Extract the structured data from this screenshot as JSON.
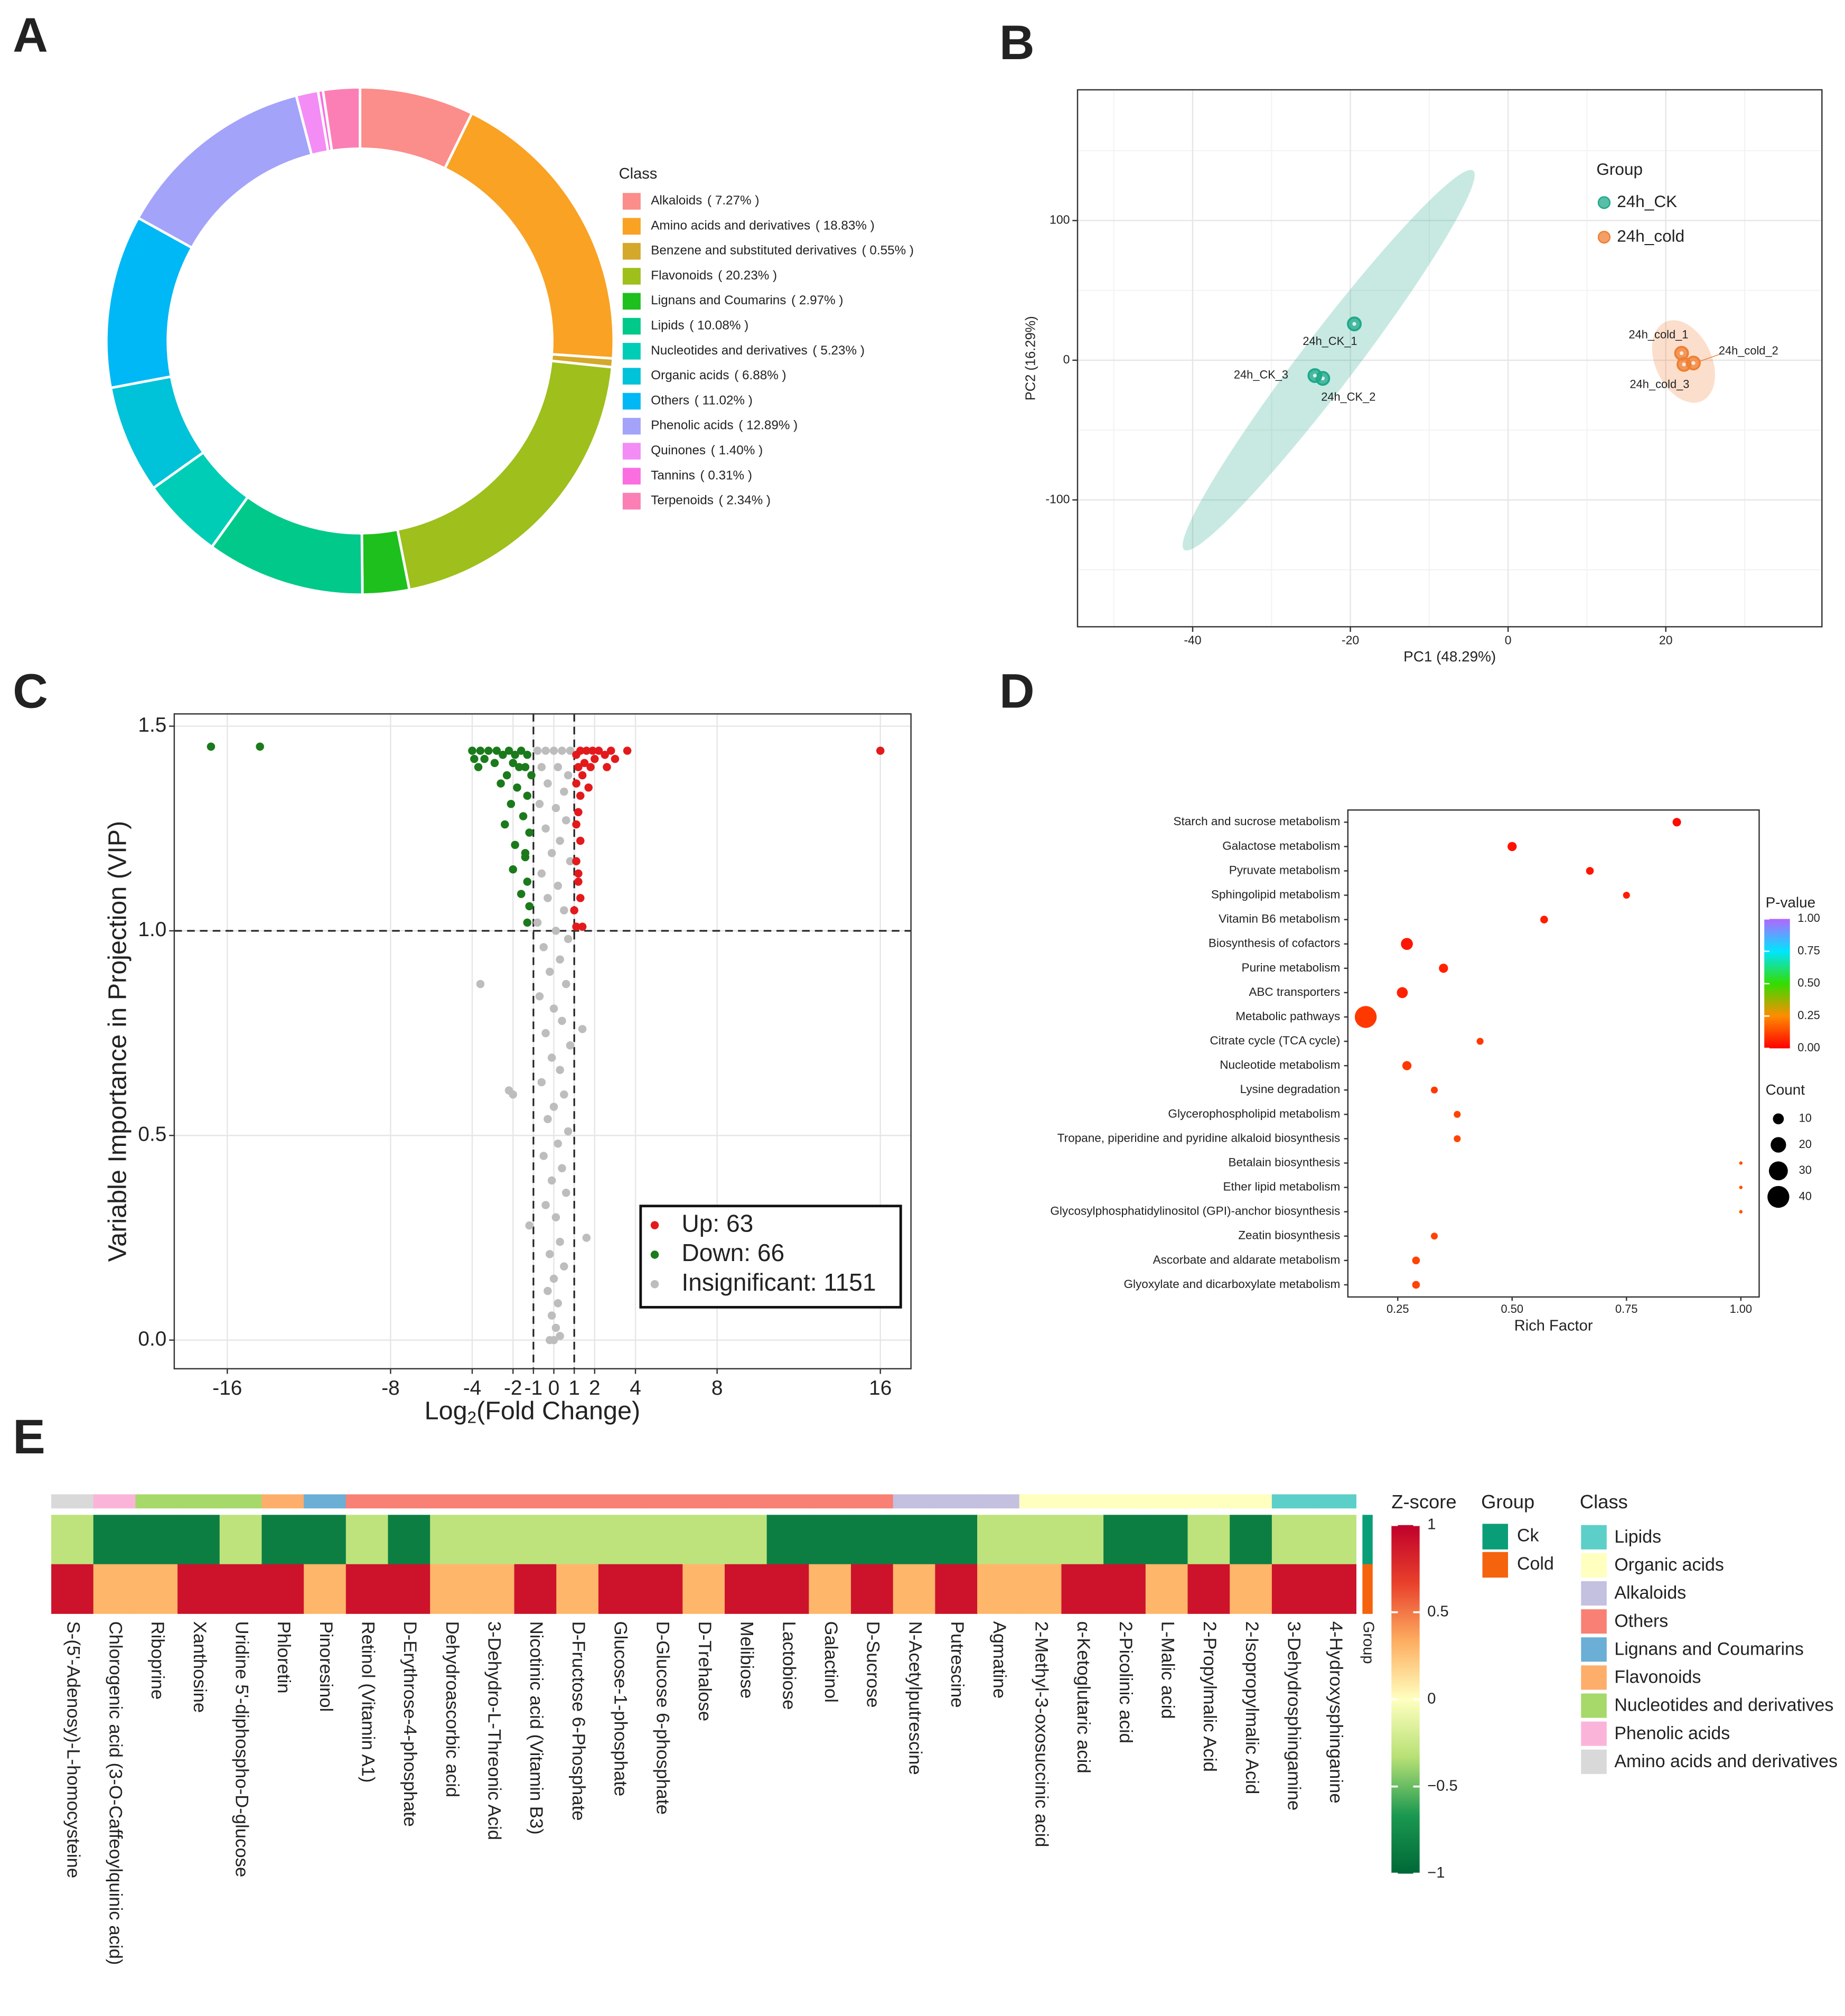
{
  "chart_data": [
    {
      "type": "pie",
      "panel": "A",
      "legend_title": "Class",
      "categories": [
        "Alkaloids",
        "Amino acids and derivatives",
        "Benzene and substituted derivatives",
        "Flavonoids",
        "Lignans and Coumarins",
        "Lipids",
        "Nucleotides and derivatives",
        "Organic acids",
        "Others",
        "Phenolic acids",
        "Quinones",
        "Tannins",
        "Terpenoids"
      ],
      "values": [
        7.27,
        18.83,
        0.55,
        20.23,
        2.97,
        10.08,
        5.23,
        6.88,
        11.02,
        12.89,
        1.4,
        0.31,
        2.34
      ],
      "value_labels": [
        "( 7.27% )",
        "( 18.83% )",
        "( 0.55% )",
        "( 20.23% )",
        "( 2.97% )",
        "( 10.08% )",
        "( 5.23% )",
        "( 6.88% )",
        "( 11.02% )",
        "( 12.89% )",
        "( 1.40% )",
        "( 0.31% )",
        "( 2.34% )"
      ],
      "colors": [
        "#fb8d8a",
        "#f9a224",
        "#d4a82a",
        "#9ebf1c",
        "#1ec01e",
        "#00c98a",
        "#00cdb6",
        "#00c2d8",
        "#00b8f5",
        "#a3a3fa",
        "#f38cf5",
        "#fb6ee0",
        "#fb7fb4"
      ]
    },
    {
      "type": "scatter",
      "panel": "B",
      "xlabel": "PC1 (48.29%)",
      "ylabel": "PC2 (16.29%)",
      "xlim": [
        -54.6,
        39.8
      ],
      "ylim": [
        -190.8,
        193.6
      ],
      "xticks": [
        -40,
        -20,
        0,
        20
      ],
      "yticks": [
        -100,
        0,
        100
      ],
      "grid": true,
      "legend_title": "Group",
      "series": [
        {
          "name": "24h_CK",
          "color": "#1fa88a",
          "x": [
            -19.5,
            -23.5,
            -24.5
          ],
          "values": [
            26,
            -13,
            -11
          ],
          "point_labels": [
            "24h_CK_1",
            "24h_CK_2",
            "24h_CK_3"
          ]
        },
        {
          "name": "24h_cold",
          "color": "#ef7f32",
          "x": [
            22,
            23.5,
            22.3
          ],
          "values": [
            5,
            -2,
            -3
          ],
          "point_labels": [
            "24h_cold_1",
            "24h_cold_2",
            "24h_cold_3"
          ]
        }
      ]
    },
    {
      "type": "scatter",
      "panel": "C",
      "xlabel": [
        "Log",
        "2",
        "(Fold Change)"
      ],
      "ylabel": "Variable Importance in Projection (VIP)",
      "xlim": [
        -18.6,
        17.5
      ],
      "ylim": [
        -0.07,
        1.53
      ],
      "xticks": [
        -16,
        -8,
        -4,
        -2,
        -1,
        0,
        1,
        2,
        4,
        8,
        16
      ],
      "yticks": [
        {
          "value": 0,
          "label": "0.0"
        },
        0.5,
        {
          "value": 1,
          "label": "1.0"
        },
        1.5
      ],
      "grid": true,
      "thresholds": {
        "x": [
          -1,
          1
        ],
        "y": [
          1
        ]
      },
      "series": [
        {
          "name": "Up: 63",
          "color": "#e31a1c",
          "x": [
            16,
            3.6,
            2.8,
            2.5,
            2.2,
            1.9,
            1.6,
            1.3,
            1.1,
            2.0,
            1.5,
            1.2,
            1.8,
            3.0,
            2.6,
            1.4,
            1.1,
            1.7,
            1.3,
            1.2,
            1.1,
            1.3,
            1.1,
            1.2,
            1.3,
            1.0,
            1.1,
            1.4,
            1.2
          ],
          "values": [
            1.44,
            1.44,
            1.44,
            1.43,
            1.44,
            1.44,
            1.44,
            1.44,
            1.43,
            1.42,
            1.41,
            1.4,
            1.4,
            1.42,
            1.4,
            1.38,
            1.36,
            1.35,
            1.33,
            1.29,
            1.26,
            1.22,
            1.17,
            1.12,
            1.08,
            1.05,
            1.01,
            1.01,
            1.14
          ]
        },
        {
          "name": "Down: 66",
          "color": "#1b7a1b",
          "x": [
            -16.8,
            -14.4,
            -4.0,
            -3.6,
            -3.2,
            -2.8,
            -2.5,
            -2.2,
            -1.9,
            -1.6,
            -1.3,
            -3.9,
            -3.4,
            -2.9,
            -2.0,
            -1.7,
            -1.4,
            -3.7,
            -2.3,
            -1.1,
            -2.6,
            -1.8,
            -1.3,
            -2.1,
            -1.5,
            -2.4,
            -1.2,
            -1.9,
            -1.4,
            -2.0,
            -1.3,
            -1.6,
            -1.2,
            -1.3,
            -1.4
          ],
          "values": [
            1.45,
            1.45,
            1.44,
            1.44,
            1.44,
            1.44,
            1.43,
            1.44,
            1.43,
            1.44,
            1.43,
            1.42,
            1.42,
            1.41,
            1.41,
            1.4,
            1.4,
            1.4,
            1.38,
            1.38,
            1.36,
            1.35,
            1.33,
            1.31,
            1.28,
            1.26,
            1.24,
            1.21,
            1.18,
            1.15,
            1.12,
            1.09,
            1.06,
            1.02,
            1.19
          ]
        },
        {
          "name": "Insignificant: 1151",
          "color": "#bdbdbd",
          "x": [
            -0.8,
            -0.4,
            0,
            0.4,
            0.8,
            -0.6,
            0.2,
            0.7,
            -0.3,
            0.5,
            -0.7,
            0.1,
            0.6,
            -0.4,
            0.3,
            -0.1,
            0.8,
            -0.6,
            0.2,
            -0.3,
            0.5,
            -0.8,
            0.1,
            0.7,
            -0.5,
            0.3,
            -0.2,
            1.4,
            -3.6,
            0.6,
            -0.7,
            0,
            0.4,
            -0.4,
            0.8,
            -0.1,
            0.3,
            -0.6,
            -2.2,
            -2.0,
            0.5,
            0,
            -0.3,
            0.7,
            0.2,
            -0.5,
            0.4,
            -0.1,
            0.6,
            -0.4,
            0.1,
            -1.2,
            1.6,
            0.3,
            -0.2,
            0.5,
            0,
            -0.3,
            0.2,
            -0.1,
            0.1,
            0,
            -0.2,
            0.3
          ],
          "values": [
            1.44,
            1.44,
            1.44,
            1.44,
            1.44,
            1.4,
            1.4,
            1.38,
            1.36,
            1.34,
            1.31,
            1.3,
            1.27,
            1.25,
            1.22,
            1.19,
            1.17,
            1.14,
            1.11,
            1.08,
            1.05,
            1.02,
            1.0,
            0.98,
            0.96,
            0.93,
            0.9,
            0.76,
            0.87,
            0.87,
            0.84,
            0.81,
            0.78,
            0.75,
            0.72,
            0.69,
            0.66,
            0.63,
            0.61,
            0.6,
            0.6,
            0.57,
            0.54,
            0.51,
            0.48,
            0.45,
            0.42,
            0.39,
            0.36,
            0.33,
            0.3,
            0.28,
            0.25,
            0.24,
            0.21,
            0.18,
            0.15,
            0.12,
            0.09,
            0.06,
            0.03,
            0,
            0,
            0.01
          ]
        }
      ]
    },
    {
      "type": "bubble",
      "panel": "D",
      "xlabel": "Rich Factor",
      "xlim": [
        0.141,
        1.04
      ],
      "xticks": [
        {
          "value": 0.25,
          "label": "0.25"
        },
        {
          "value": 0.5,
          "label": "0.50"
        },
        {
          "value": 0.75,
          "label": "0.75"
        },
        {
          "value": 1,
          "label": "1.00"
        }
      ],
      "categories": [
        "Starch and sucrose metabolism",
        "Galactose metabolism",
        "Pyruvate metabolism",
        "Sphingolipid metabolism",
        "Vitamin B6 metabolism",
        "Biosynthesis of cofactors",
        "Purine metabolism",
        "ABC transporters",
        "Metabolic pathways",
        "Citrate cycle (TCA cycle)",
        "Nucleotide metabolism",
        "Lysine degradation",
        "Glycerophospholipid metabolism",
        "Tropane, piperidine and pyridine alkaloid biosynthesis",
        "Betalain biosynthesis",
        "Ether lipid metabolism",
        "Glycosylphosphatidylinositol (GPI)-anchor biosynthesis",
        "Zeatin biosynthesis",
        "Ascorbate and aldarate metabolism",
        "Glyoxylate and dicarboxylate metabolism"
      ],
      "values": [
        0.86,
        0.5,
        0.67,
        0.75,
        0.57,
        0.27,
        0.35,
        0.26,
        0.18,
        0.43,
        0.27,
        0.33,
        0.38,
        0.38,
        1.0,
        1.0,
        1.0,
        0.33,
        0.29,
        0.29
      ],
      "sizes": [
        6,
        7,
        5,
        4,
        5,
        12,
        7,
        10,
        40,
        4,
        7,
        4,
        4,
        4,
        1,
        1,
        1,
        4,
        5,
        5
      ],
      "pvalues": [
        0.02,
        0.03,
        0.04,
        0.05,
        0.05,
        0.04,
        0.06,
        0.06,
        0.1,
        0.1,
        0.1,
        0.1,
        0.12,
        0.12,
        0.15,
        0.15,
        0.15,
        0.12,
        0.12,
        0.12
      ],
      "color_title": "P-value",
      "clim": [
        0,
        1
      ],
      "colorscale": [
        "#ff0000",
        "#ff8c00",
        "#33dd00",
        "#00e5ff",
        "#b266ff"
      ],
      "cticks": [
        {
          "value": 0,
          "label": "0.00"
        },
        0.25,
        {
          "value": 0.5,
          "label": "0.50"
        },
        0.75,
        {
          "value": 1,
          "label": "1.00"
        }
      ],
      "size_title": "Count",
      "size_ticks": [
        10,
        20,
        30,
        40
      ]
    },
    {
      "type": "heatmap",
      "panel": "E",
      "columns": [
        "S-(5'-Adenosy)-L-homocysteine",
        "Chlorogenic acid (3-O-Caffeoylquinic acid)",
        "Riboprine",
        "Xanthosine",
        "Uridine 5'-diphospho-D-glucose",
        "Phloretin",
        "Pinoresinol",
        "Retinol (Vitamin A1)",
        "D-Erythrose-4-phosphate",
        "Dehydroascorbic acid",
        "3-Dehydro-L-Threonic Acid",
        "Nicotinic acid (Vitamin B3)",
        "D-Fructose 6-Phosphate",
        "Glucose-1-phosphate",
        "D-Glucose 6-phosphate",
        "D-Trehalose",
        "Melibiose",
        "Lactobiose",
        "Galactinol",
        "D-Sucrose",
        "N-Acetylputrescine",
        "Putrescine",
        "Agmatine",
        "2-Methyl-3-oxosuccinic acid",
        "α-Ketoglutaric acid",
        "2-Picolinic acid",
        "L-Malic acid",
        "2-Propylmalic Acid",
        "2-Isopropylmalic Acid",
        "3-Dehydrosphingamine",
        "4-Hydroxysphinganine"
      ],
      "values": [
        [
          -0.3,
          -0.85,
          -0.85,
          -0.85,
          -0.3,
          -0.85,
          -0.85,
          -0.3,
          -0.85,
          -0.3,
          -0.3,
          -0.3,
          -0.3,
          -0.3,
          -0.3,
          -0.3,
          -0.3,
          -0.85,
          -0.85,
          -0.85,
          -0.85,
          -0.85,
          -0.3,
          -0.3,
          -0.3,
          -0.85,
          -0.85,
          -0.3,
          -0.85,
          -0.3,
          -0.3
        ],
        [
          0.9,
          0.3,
          0.3,
          0.9,
          0.9,
          0.9,
          0.3,
          0.9,
          0.9,
          0.3,
          0.3,
          0.9,
          0.3,
          0.9,
          0.9,
          0.3,
          0.9,
          0.9,
          0.3,
          0.9,
          0.3,
          0.9,
          0.3,
          0.3,
          0.9,
          0.9,
          0.3,
          0.9,
          0.3,
          0.9,
          0.9
        ]
      ],
      "zlim": [
        -1,
        1
      ],
      "colorscale": [
        "#006837",
        "#1a9850",
        "#b7e075",
        "#ffffbf",
        "#fdae61",
        "#e8402b",
        "#c0002b"
      ],
      "zticks": [
        {
          "value": -1,
          "label": "−1"
        },
        {
          "value": -0.5,
          "label": "−0.5"
        },
        0,
        0.5,
        1
      ],
      "color_title": "Z-score",
      "group_title": "Group",
      "groups": [
        "Ck",
        "Cold"
      ],
      "group_colors": [
        "#0a9e78",
        "#f5630c"
      ],
      "group_axis_label": "Group",
      "class_title": "Class",
      "classes": [
        "Lipids",
        "Organic acids",
        "Alkaloids",
        "Others",
        "Lignans and Coumarins",
        "Flavonoids",
        "Nucleotides and derivatives",
        "Phenolic acids",
        "Amino acids and derivatives"
      ],
      "class_colors": [
        "#5ccfc8",
        "#ffffc0",
        "#c4c0df",
        "#f98074",
        "#6baed6",
        "#fdae6b",
        "#a6d96a",
        "#fbb4d9",
        "#d9d9d9"
      ],
      "column_class": [
        "Amino acids and derivatives",
        "Phenolic acids",
        "Nucleotides and derivatives",
        "Nucleotides and derivatives",
        "Nucleotides and derivatives",
        "Flavonoids",
        "Lignans and Coumarins",
        "Others",
        "Others",
        "Others",
        "Others",
        "Others",
        "Others",
        "Others",
        "Others",
        "Others",
        "Others",
        "Others",
        "Others",
        "Others",
        "Alkaloids",
        "Alkaloids",
        "Alkaloids",
        "Organic acids",
        "Organic acids",
        "Organic acids",
        "Organic acids",
        "Organic acids",
        "Organic acids",
        "Lipids",
        "Lipids"
      ]
    }
  ]
}
